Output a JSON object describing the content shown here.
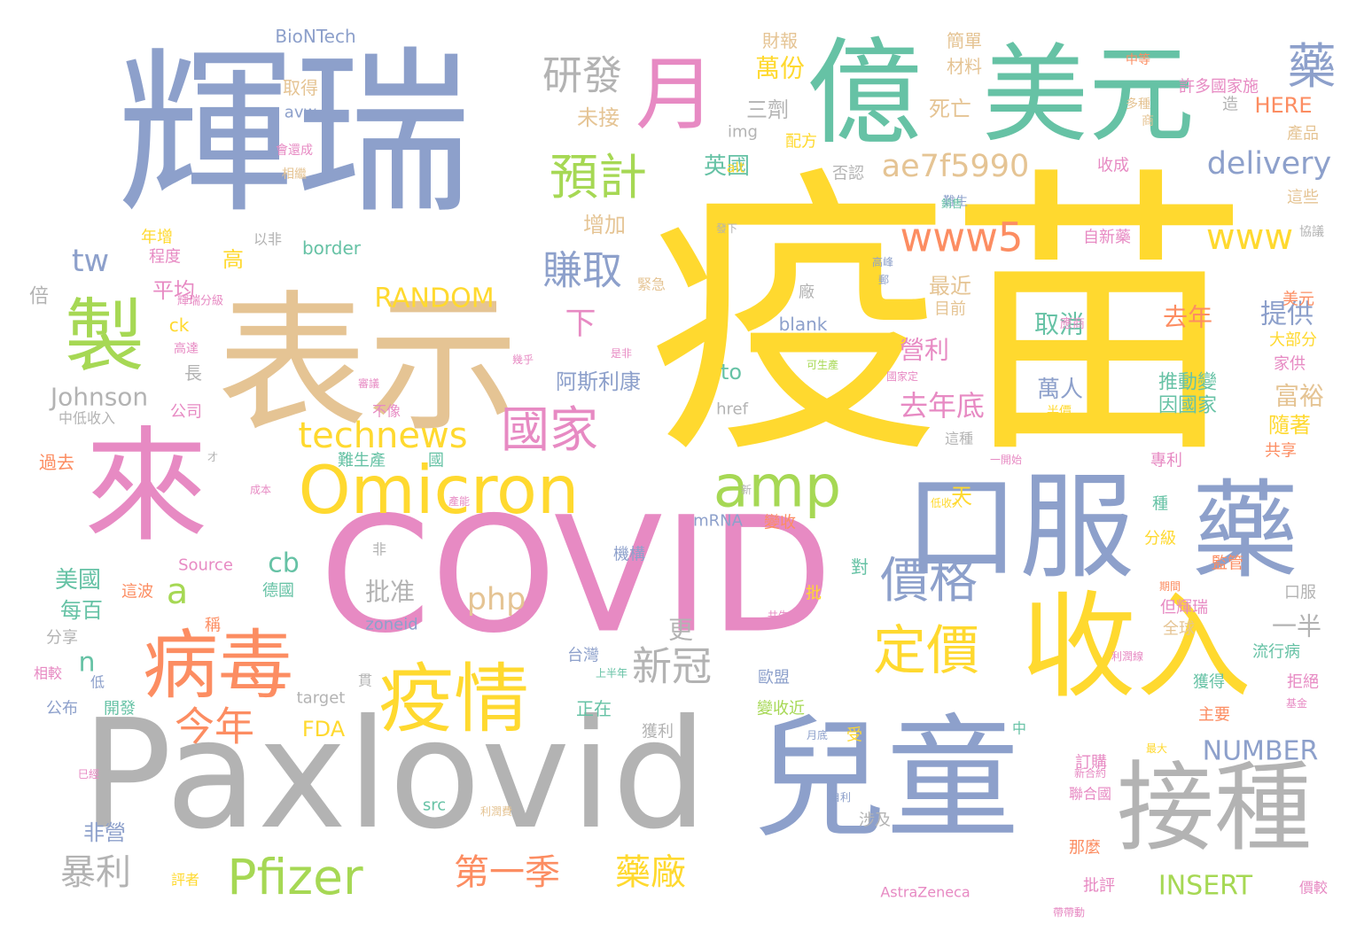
{
  "word_cloud": {
    "palette": {
      "yellow": "#ffd92f",
      "pink": "#e78ac3",
      "blue": "#8da0cb",
      "green": "#66c2a5",
      "orange": "#fc8d62",
      "gray": "#b3b3b3",
      "tan": "#e5c494",
      "lime": "#a6d854"
    },
    "words": [
      {
        "text": "疫苗",
        "color": "yellow"
      },
      {
        "text": "輝瑞",
        "color": "blue"
      },
      {
        "text": "表示",
        "color": "tan"
      },
      {
        "text": "COVID",
        "color": "pink"
      },
      {
        "text": "Paxlovid",
        "color": "gray"
      },
      {
        "text": "兒童",
        "color": "blue"
      },
      {
        "text": "億",
        "color": "green"
      },
      {
        "text": "美元",
        "color": "green"
      },
      {
        "text": "來",
        "color": "pink"
      },
      {
        "text": "收入",
        "color": "yellow"
      },
      {
        "text": "口服",
        "color": "blue"
      },
      {
        "text": "藥",
        "color": "blue"
      },
      {
        "text": "接種",
        "color": "gray"
      },
      {
        "text": "Omicron",
        "color": "yellow"
      },
      {
        "text": "製",
        "color": "lime"
      },
      {
        "text": "病毒",
        "color": "orange"
      },
      {
        "text": "疫情",
        "color": "yellow"
      },
      {
        "text": "月",
        "color": "pink"
      },
      {
        "text": "amp",
        "color": "lime"
      },
      {
        "text": "國家",
        "color": "pink"
      },
      {
        "text": "定價",
        "color": "yellow"
      },
      {
        "text": "價格",
        "color": "blue"
      },
      {
        "text": "預計",
        "color": "lime"
      },
      {
        "text": "藥",
        "color": "blue"
      },
      {
        "text": "研發",
        "color": "gray"
      },
      {
        "text": "Pfizer",
        "color": "lime"
      },
      {
        "text": "www5",
        "color": "orange"
      },
      {
        "text": "technews",
        "color": "yellow"
      },
      {
        "text": "ae7f5990",
        "color": "tan"
      },
      {
        "text": "www",
        "color": "yellow"
      },
      {
        "text": "delivery",
        "color": "blue"
      },
      {
        "text": "賺取",
        "color": "blue"
      },
      {
        "text": "今年",
        "color": "orange"
      },
      {
        "text": "第一季",
        "color": "orange"
      },
      {
        "text": "藥廠",
        "color": "yellow"
      },
      {
        "text": "暴利",
        "color": "gray"
      },
      {
        "text": "新冠",
        "color": "gray"
      },
      {
        "text": "RANDOM",
        "color": "yellow"
      },
      {
        "text": "php",
        "color": "tan"
      },
      {
        "text": "INSERT",
        "color": "lime"
      },
      {
        "text": "NUMBER",
        "color": "blue"
      },
      {
        "text": "Johnson",
        "color": "gray"
      },
      {
        "text": "a",
        "color": "lime"
      },
      {
        "text": "tw",
        "color": "blue"
      },
      {
        "text": "cb",
        "color": "green"
      },
      {
        "text": "n",
        "color": "green"
      },
      {
        "text": "下",
        "color": "pink"
      },
      {
        "text": "去年底",
        "color": "pink"
      },
      {
        "text": "營利",
        "color": "pink"
      },
      {
        "text": "提供",
        "color": "blue"
      },
      {
        "text": "富裕",
        "color": "tan"
      },
      {
        "text": "取消",
        "color": "green"
      },
      {
        "text": "去年",
        "color": "orange"
      },
      {
        "text": "萬人",
        "color": "blue"
      },
      {
        "text": "推動變",
        "color": "green"
      },
      {
        "text": "因國家",
        "color": "green"
      },
      {
        "text": "阿斯利康",
        "color": "blue"
      },
      {
        "text": "批准",
        "color": "gray"
      },
      {
        "text": "美國",
        "color": "green"
      },
      {
        "text": "平均",
        "color": "pink"
      },
      {
        "text": "每百",
        "color": "green"
      },
      {
        "text": "非營",
        "color": "blue"
      },
      {
        "text": "萬份",
        "color": "yellow"
      },
      {
        "text": "三劑",
        "color": "gray"
      },
      {
        "text": "英國",
        "color": "green"
      },
      {
        "text": "增加",
        "color": "tan"
      },
      {
        "text": "未接",
        "color": "tan"
      },
      {
        "text": "死亡",
        "color": "tan"
      },
      {
        "text": "最近",
        "color": "tan"
      },
      {
        "text": "目前",
        "color": "tan"
      },
      {
        "text": "HERE",
        "color": "orange"
      },
      {
        "text": "to",
        "color": "green"
      },
      {
        "text": "天",
        "color": "yellow"
      },
      {
        "text": "FDA",
        "color": "yellow"
      },
      {
        "text": "更",
        "color": "gray"
      },
      {
        "text": "一半",
        "color": "gray"
      },
      {
        "text": "隨著",
        "color": "yellow"
      },
      {
        "text": "高",
        "color": "yellow"
      },
      {
        "text": "BioNTech",
        "color": "blue"
      },
      {
        "text": "財報",
        "color": "tan"
      },
      {
        "text": "簡單",
        "color": "tan"
      },
      {
        "text": "材料",
        "color": "tan"
      },
      {
        "text": "取得",
        "color": "tan"
      },
      {
        "text": "avw",
        "color": "blue"
      },
      {
        "text": "img",
        "color": "gray"
      },
      {
        "text": "配方",
        "color": "yellow"
      },
      {
        "text": "否認",
        "color": "gray"
      },
      {
        "text": "收成",
        "color": "pink"
      },
      {
        "text": "自新藥",
        "color": "pink"
      },
      {
        "text": "許多國家施",
        "color": "pink"
      },
      {
        "text": "造",
        "color": "gray"
      },
      {
        "text": "產品",
        "color": "tan"
      },
      {
        "text": "這些",
        "color": "tan"
      },
      {
        "text": "美元",
        "color": "orange"
      },
      {
        "text": "大部分",
        "color": "yellow"
      },
      {
        "text": "家供",
        "color": "pink"
      },
      {
        "text": "alt",
        "color": "yellow"
      },
      {
        "text": "border",
        "color": "green"
      },
      {
        "text": "blank",
        "color": "blue"
      },
      {
        "text": "href",
        "color": "gray"
      },
      {
        "text": "target",
        "color": "gray"
      },
      {
        "text": "zoneid",
        "color": "blue"
      },
      {
        "text": "Source",
        "color": "pink"
      },
      {
        "text": "mRNA",
        "color": "blue"
      },
      {
        "text": "src",
        "color": "green"
      },
      {
        "text": "AstraZeneca",
        "color": "pink"
      },
      {
        "text": "ck",
        "color": "yellow"
      },
      {
        "text": "年增",
        "color": "yellow"
      },
      {
        "text": "程度",
        "color": "pink"
      },
      {
        "text": "以非",
        "color": "gray"
      },
      {
        "text": "倍",
        "color": "gray"
      },
      {
        "text": "長",
        "color": "gray"
      },
      {
        "text": "公司",
        "color": "pink"
      },
      {
        "text": "中低收入",
        "color": "gray"
      },
      {
        "text": "過去",
        "color": "orange"
      },
      {
        "text": "分享",
        "color": "gray"
      },
      {
        "text": "公布",
        "color": "blue"
      },
      {
        "text": "開發",
        "color": "green"
      },
      {
        "text": "相較",
        "color": "pink"
      },
      {
        "text": "稱",
        "color": "orange"
      },
      {
        "text": "德國",
        "color": "green"
      },
      {
        "text": "這波",
        "color": "orange"
      },
      {
        "text": "難生產",
        "color": "green"
      },
      {
        "text": "國",
        "color": "green"
      },
      {
        "text": "機構",
        "color": "blue"
      },
      {
        "text": "變收",
        "color": "orange"
      },
      {
        "text": "台灣",
        "color": "blue"
      },
      {
        "text": "正在",
        "color": "green"
      },
      {
        "text": "對",
        "color": "green"
      },
      {
        "text": "歐盟",
        "color": "blue"
      },
      {
        "text": "變收近",
        "color": "lime"
      },
      {
        "text": "獲利",
        "color": "gray"
      },
      {
        "text": "受",
        "color": "yellow"
      },
      {
        "text": "中",
        "color": "green"
      },
      {
        "text": "涉及",
        "color": "gray"
      },
      {
        "text": "訂購",
        "color": "pink"
      },
      {
        "text": "聯合國",
        "color": "pink"
      },
      {
        "text": "那麼",
        "color": "orange"
      },
      {
        "text": "批評",
        "color": "pink"
      },
      {
        "text": "主要",
        "color": "orange"
      },
      {
        "text": "獲得",
        "color": "green"
      },
      {
        "text": "拒絕",
        "color": "pink"
      },
      {
        "text": "流行病",
        "color": "green"
      },
      {
        "text": "全球",
        "color": "tan"
      },
      {
        "text": "但輝瑞",
        "color": "pink"
      },
      {
        "text": "監管",
        "color": "orange"
      },
      {
        "text": "口服",
        "color": "gray"
      },
      {
        "text": "分級",
        "color": "yellow"
      },
      {
        "text": "種",
        "color": "green"
      },
      {
        "text": "專利",
        "color": "pink"
      },
      {
        "text": "共享",
        "color": "orange"
      },
      {
        "text": "這種",
        "color": "gray"
      },
      {
        "text": "廠",
        "color": "gray"
      },
      {
        "text": "緊急",
        "color": "tan"
      },
      {
        "text": "不像",
        "color": "pink"
      },
      {
        "text": "評者",
        "color": "yellow"
      },
      {
        "text": "非",
        "color": "gray"
      },
      {
        "text": "批",
        "color": "yellow"
      },
      {
        "text": "價較",
        "color": "pink"
      },
      {
        "text": "低",
        "color": "blue"
      },
      {
        "text": "貫",
        "color": "gray"
      },
      {
        "text": "難生",
        "color": "blue"
      },
      {
        "text": "中等",
        "color": "orange"
      },
      {
        "text": "多種",
        "color": "tan"
      },
      {
        "text": "商",
        "color": "tan"
      },
      {
        "text": "協議",
        "color": "gray"
      },
      {
        "text": "應商",
        "color": "pink"
      },
      {
        "text": "半價",
        "color": "yellow"
      },
      {
        "text": "會還成",
        "color": "pink"
      },
      {
        "text": "相繼",
        "color": "tan"
      },
      {
        "text": "輝瑞分級",
        "color": "pink"
      },
      {
        "text": "高達",
        "color": "pink"
      },
      {
        "text": "是非",
        "color": "pink"
      },
      {
        "text": "幾乎",
        "color": "pink"
      },
      {
        "text": "高峰",
        "color": "blue"
      },
      {
        "text": "郵",
        "color": "blue"
      },
      {
        "text": "發下",
        "color": "gray"
      },
      {
        "text": "銷售",
        "color": "green"
      },
      {
        "text": "國家定",
        "color": "pink"
      },
      {
        "text": "可生產",
        "color": "lime"
      },
      {
        "text": "成本",
        "color": "pink"
      },
      {
        "text": "新",
        "color": "gray"
      },
      {
        "text": "才",
        "color": "gray"
      },
      {
        "text": "一開始",
        "color": "pink"
      },
      {
        "text": "產能",
        "color": "pink"
      },
      {
        "text": "低收入",
        "color": "yellow"
      },
      {
        "text": "上半年",
        "color": "green"
      },
      {
        "text": "共生",
        "color": "pink"
      },
      {
        "text": "期間",
        "color": "orange"
      },
      {
        "text": "利潤線",
        "color": "pink"
      },
      {
        "text": "基金",
        "color": "pink"
      },
      {
        "text": "月底",
        "color": "blue"
      },
      {
        "text": "最大",
        "color": "yellow"
      },
      {
        "text": "新合約",
        "color": "pink"
      },
      {
        "text": "巳經",
        "color": "pink"
      },
      {
        "text": "自利",
        "color": "blue"
      },
      {
        "text": "利潤費",
        "color": "tan"
      },
      {
        "text": "帶帶動",
        "color": "pink"
      },
      {
        "text": "審議",
        "color": "pink"
      }
    ]
  }
}
